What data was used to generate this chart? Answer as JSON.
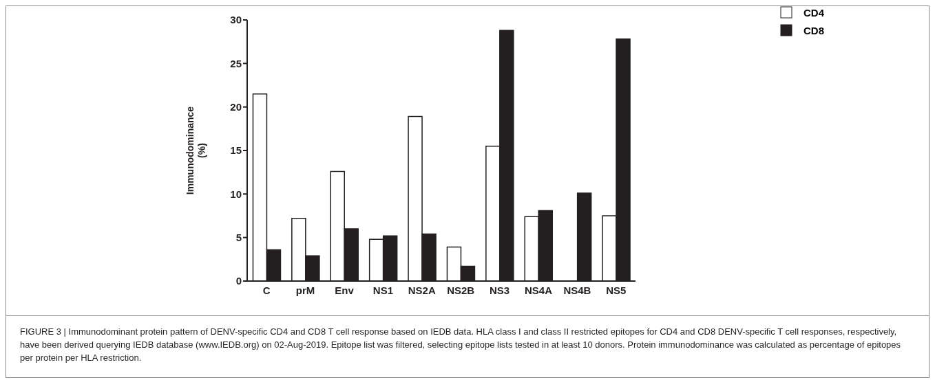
{
  "chart_data": {
    "type": "bar",
    "ylabel": "Immunodominance (%)",
    "categories": [
      "C",
      "prM",
      "Env",
      "NS1",
      "NS2A",
      "NS2B",
      "NS3",
      "NS4A",
      "NS4B",
      "NS5"
    ],
    "series": [
      {
        "name": "CD4",
        "color": "#ffffff",
        "values": [
          21.5,
          7.2,
          12.6,
          4.8,
          18.9,
          3.9,
          15.5,
          7.4,
          0,
          7.5
        ]
      },
      {
        "name": "CD8",
        "color": "#231f20",
        "values": [
          3.6,
          2.9,
          6.0,
          5.2,
          5.4,
          1.7,
          28.8,
          8.1,
          10.1,
          27.8
        ]
      }
    ],
    "ylim": [
      0,
      30
    ],
    "yticks": [
      0,
      5,
      10,
      15,
      20,
      25,
      30
    ],
    "grid": false,
    "legend": "top right",
    "annotations": [
      "FIGURE 3 | Immunodominant protein pattern of DENV-specific CD4 and CD8 T cell response based on IEDB data. HLA class I and class II restricted epitopes for CD4 and CD8 DENV-specific T cell responses, respectively, have been derived querying IEDB database (www.IEDB.org) on 02-Aug-2019. Epitope list was filtered, selecting epitope lists tested in at least 10 donors. Protein immunodominance was calculated as percentage of epitopes per protein per HLA restriction."
    ]
  }
}
